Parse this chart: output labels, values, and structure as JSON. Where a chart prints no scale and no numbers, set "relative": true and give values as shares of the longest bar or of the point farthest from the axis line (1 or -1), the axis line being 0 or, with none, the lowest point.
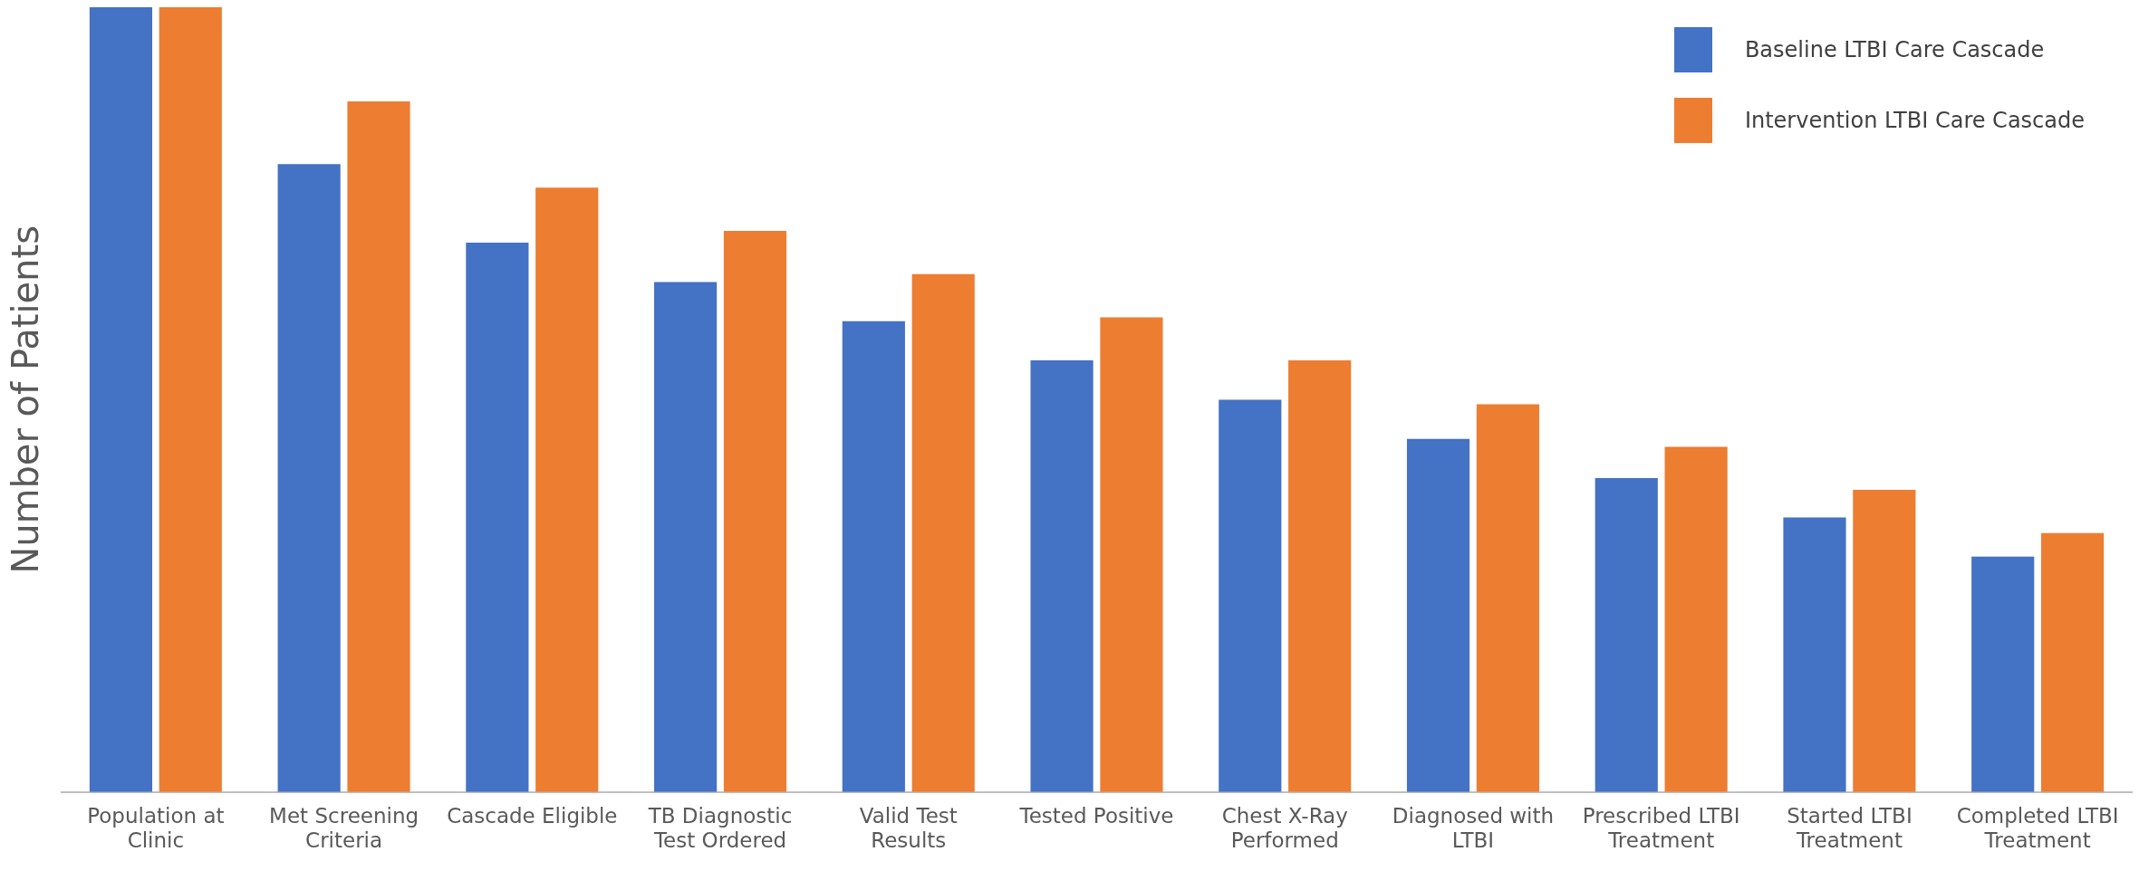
{
  "chart_data": {
    "type": "bar",
    "relative": true,
    "ylabel": "Number of Patients",
    "categories": [
      "Population at Clinic",
      "Met Screening Criteria",
      "Cascade Eligible",
      "TB Diagnostic Test Ordered",
      "Valid Test Results",
      "Tested Positive",
      "Chest X-Ray Performed",
      "Diagnosed with LTBI",
      "Prescribed LTBI Treatment",
      "Started LTBI Treatment",
      "Completed LTBI Treatment"
    ],
    "series": [
      {
        "name": "Baseline LTBI Care Cascade",
        "color": "#4472c4",
        "values": [
          1.0,
          0.8,
          0.7,
          0.65,
          0.6,
          0.55,
          0.5,
          0.45,
          0.4,
          0.35,
          0.3
        ]
      },
      {
        "name": "Intervention LTBI Care Cascade",
        "color": "#ed7d31",
        "values": [
          1.0,
          0.88,
          0.77,
          0.715,
          0.66,
          0.605,
          0.55,
          0.494,
          0.44,
          0.385,
          0.33
        ]
      }
    ],
    "legend": "top right",
    "grid": false
  }
}
